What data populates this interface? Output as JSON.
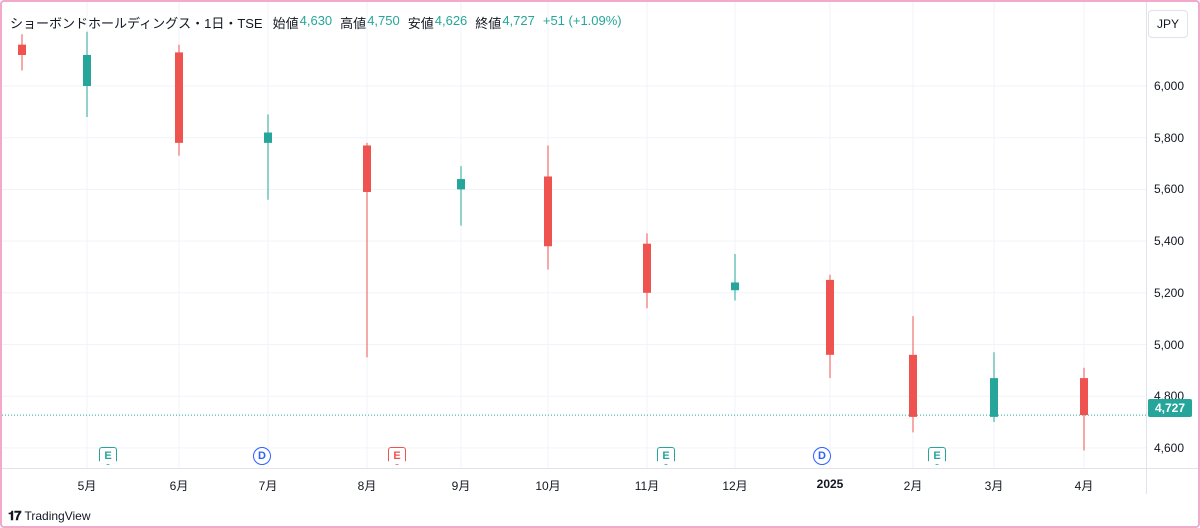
{
  "header": {
    "title": "ショーボンドホールディングス・1日・TSE",
    "open_label": "始値",
    "open": "4,630",
    "high_label": "高値",
    "high": "4,750",
    "low_label": "安値",
    "low": "4,626",
    "close_label": "終値",
    "close": "4,727",
    "change": "+51 (+1.09%)"
  },
  "currency_button": "JPY",
  "last_price_label": "4,727",
  "brand": "TradingView",
  "colors": {
    "up": "#26a69a",
    "down": "#ef5350",
    "grid": "#f0f3fa",
    "dividend": "#2962ff",
    "frame": "#f3a9c9"
  },
  "events": [
    {
      "label": "E",
      "type": "earnings",
      "color": "up",
      "date": "2024-05-13"
    },
    {
      "label": "D",
      "type": "dividend",
      "color": "dividend",
      "date": "2024-06-27"
    },
    {
      "label": "E",
      "type": "earnings",
      "color": "down",
      "date": "2024-08-08"
    },
    {
      "label": "E",
      "type": "earnings",
      "color": "up",
      "date": "2024-11-08"
    },
    {
      "label": "D",
      "type": "dividend",
      "color": "dividend",
      "date": "2024-12-27"
    },
    {
      "label": "E",
      "type": "earnings",
      "color": "up",
      "date": "2025-02-13"
    }
  ],
  "chart_data": {
    "type": "candlestick",
    "title": "ショーボンドホールディングス・1日・TSE",
    "x_axis": {
      "ticks": [
        "5月",
        "6月",
        "7月",
        "8月",
        "9月",
        "10月",
        "11月",
        "12月",
        "2025",
        "2月",
        "3月",
        "4月"
      ]
    },
    "y_axis": {
      "ticks": [
        "6,000",
        "5,800",
        "5,600",
        "5,400",
        "5,200",
        "5,000",
        "4,800",
        "4,600"
      ],
      "range": [
        4490,
        6240
      ]
    },
    "grid": true,
    "last_price": 4727,
    "series": [
      {
        "date": "2024-04",
        "open": 6160,
        "high": 6200,
        "low": 6060,
        "close": 6120
      },
      {
        "date": "2024-05",
        "open": 6000,
        "high": 6210,
        "low": 5880,
        "close": 6120
      },
      {
        "date": "2024-06",
        "open": 6130,
        "high": 6160,
        "low": 5730,
        "close": 5780
      },
      {
        "date": "2024-07",
        "open": 5780,
        "high": 5890,
        "low": 5560,
        "close": 5820
      },
      {
        "date": "2024-08",
        "open": 5770,
        "high": 5780,
        "low": 4950,
        "close": 5590
      },
      {
        "date": "2024-09",
        "open": 5600,
        "high": 5690,
        "low": 5460,
        "close": 5640
      },
      {
        "date": "2024-10",
        "open": 5650,
        "high": 5770,
        "low": 5290,
        "close": 5380
      },
      {
        "date": "2024-11",
        "open": 5390,
        "high": 5430,
        "low": 5140,
        "close": 5200
      },
      {
        "date": "2024-12",
        "open": 5210,
        "high": 5350,
        "low": 5170,
        "close": 5240
      },
      {
        "date": "2025-01",
        "open": 5250,
        "high": 5270,
        "low": 4870,
        "close": 4960
      },
      {
        "date": "2025-02",
        "open": 4960,
        "high": 5110,
        "low": 4660,
        "close": 4720
      },
      {
        "date": "2025-03",
        "open": 4720,
        "high": 4970,
        "low": 4700,
        "close": 4870
      },
      {
        "date": "2025-04",
        "open": 4870,
        "high": 4910,
        "low": 4590,
        "close": 4727
      }
    ]
  }
}
